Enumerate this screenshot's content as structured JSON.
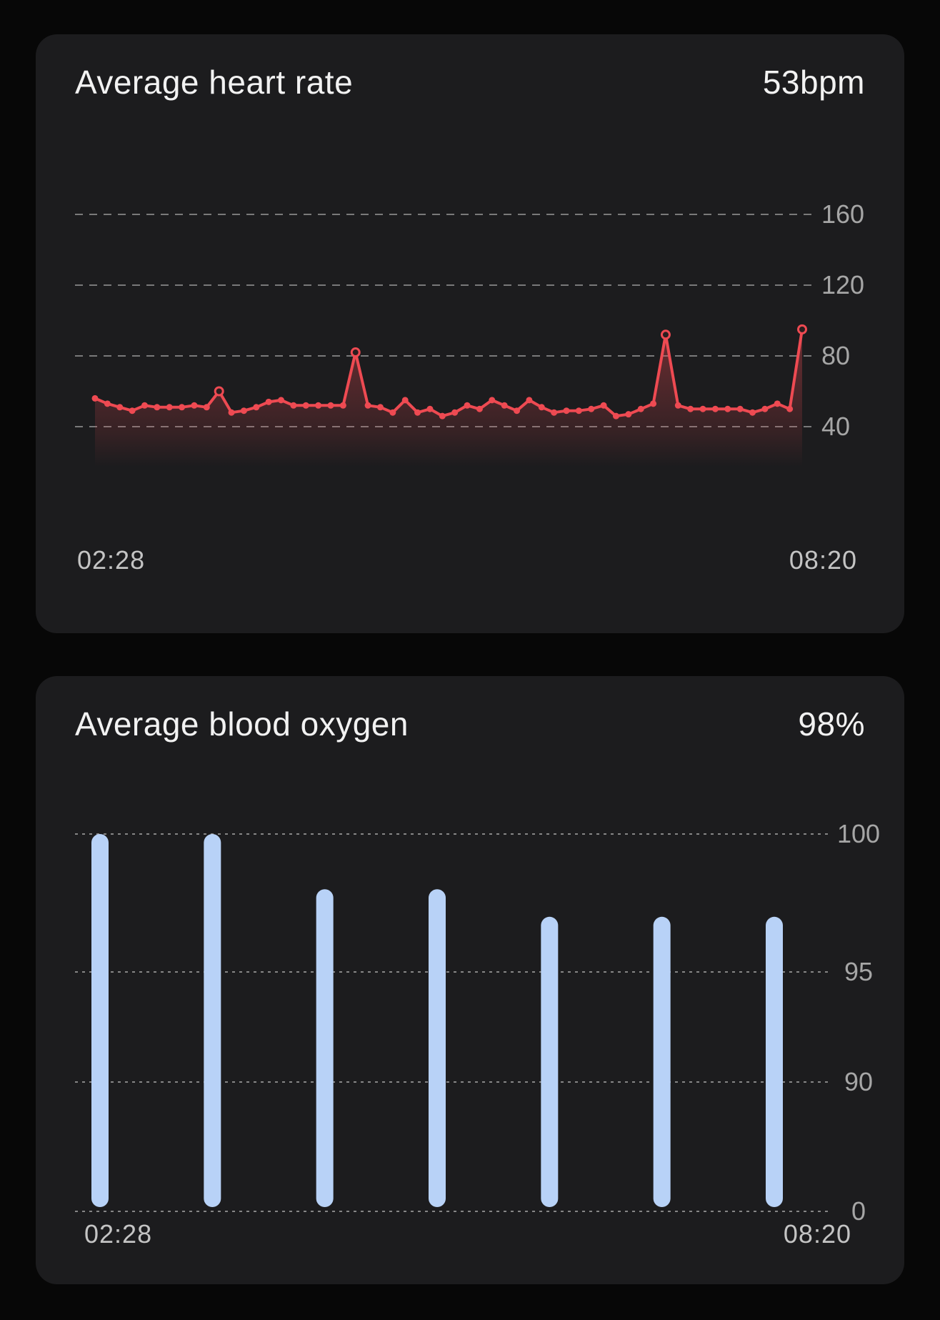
{
  "cards": [
    {
      "title": "Average heart rate",
      "value": "53bpm",
      "x_start_label": "02:28",
      "x_end_label": "08:20"
    },
    {
      "title": "Average blood oxygen",
      "value": "98%",
      "x_start_label": "02:28",
      "x_end_label": "08:20"
    }
  ],
  "chart_data": [
    {
      "type": "line",
      "title": "Average heart rate",
      "unit": "bpm",
      "average_value": 53,
      "x_range": [
        "02:28",
        "08:20"
      ],
      "y_ticks": [
        160,
        120,
        80,
        40
      ],
      "grid": "horizontal dashed",
      "legend_position": "none",
      "values": [
        56,
        53,
        51,
        49,
        52,
        51,
        51,
        51,
        52,
        51,
        60,
        48,
        49,
        51,
        54,
        55,
        52,
        52,
        52,
        52,
        52,
        82,
        52,
        51,
        48,
        55,
        48,
        50,
        46,
        48,
        52,
        50,
        55,
        52,
        49,
        55,
        51,
        48,
        49,
        49,
        50,
        52,
        46,
        47,
        50,
        53,
        92,
        52,
        50,
        50,
        50,
        50,
        50,
        48,
        50,
        53,
        50,
        95
      ]
    },
    {
      "type": "bar",
      "title": "Average blood oxygen",
      "unit": "%",
      "average_value": 98,
      "x_range": [
        "02:28",
        "08:20"
      ],
      "y_ticks": [
        100,
        95,
        90,
        0
      ],
      "grid": "horizontal dotted",
      "legend_position": "none",
      "values": [
        100,
        100,
        98,
        98,
        97,
        97,
        97
      ]
    }
  ],
  "colors": {
    "background": "#070707",
    "card_background": "#1c1c1e",
    "heart_rate_line": "#ee4a52",
    "blood_oxygen_bar": "#b8d2f7",
    "gridline": "#999999",
    "axis_label": "#a6a6a6",
    "time_label": "#c4c4c4",
    "title_text": "#f2f2f2"
  }
}
